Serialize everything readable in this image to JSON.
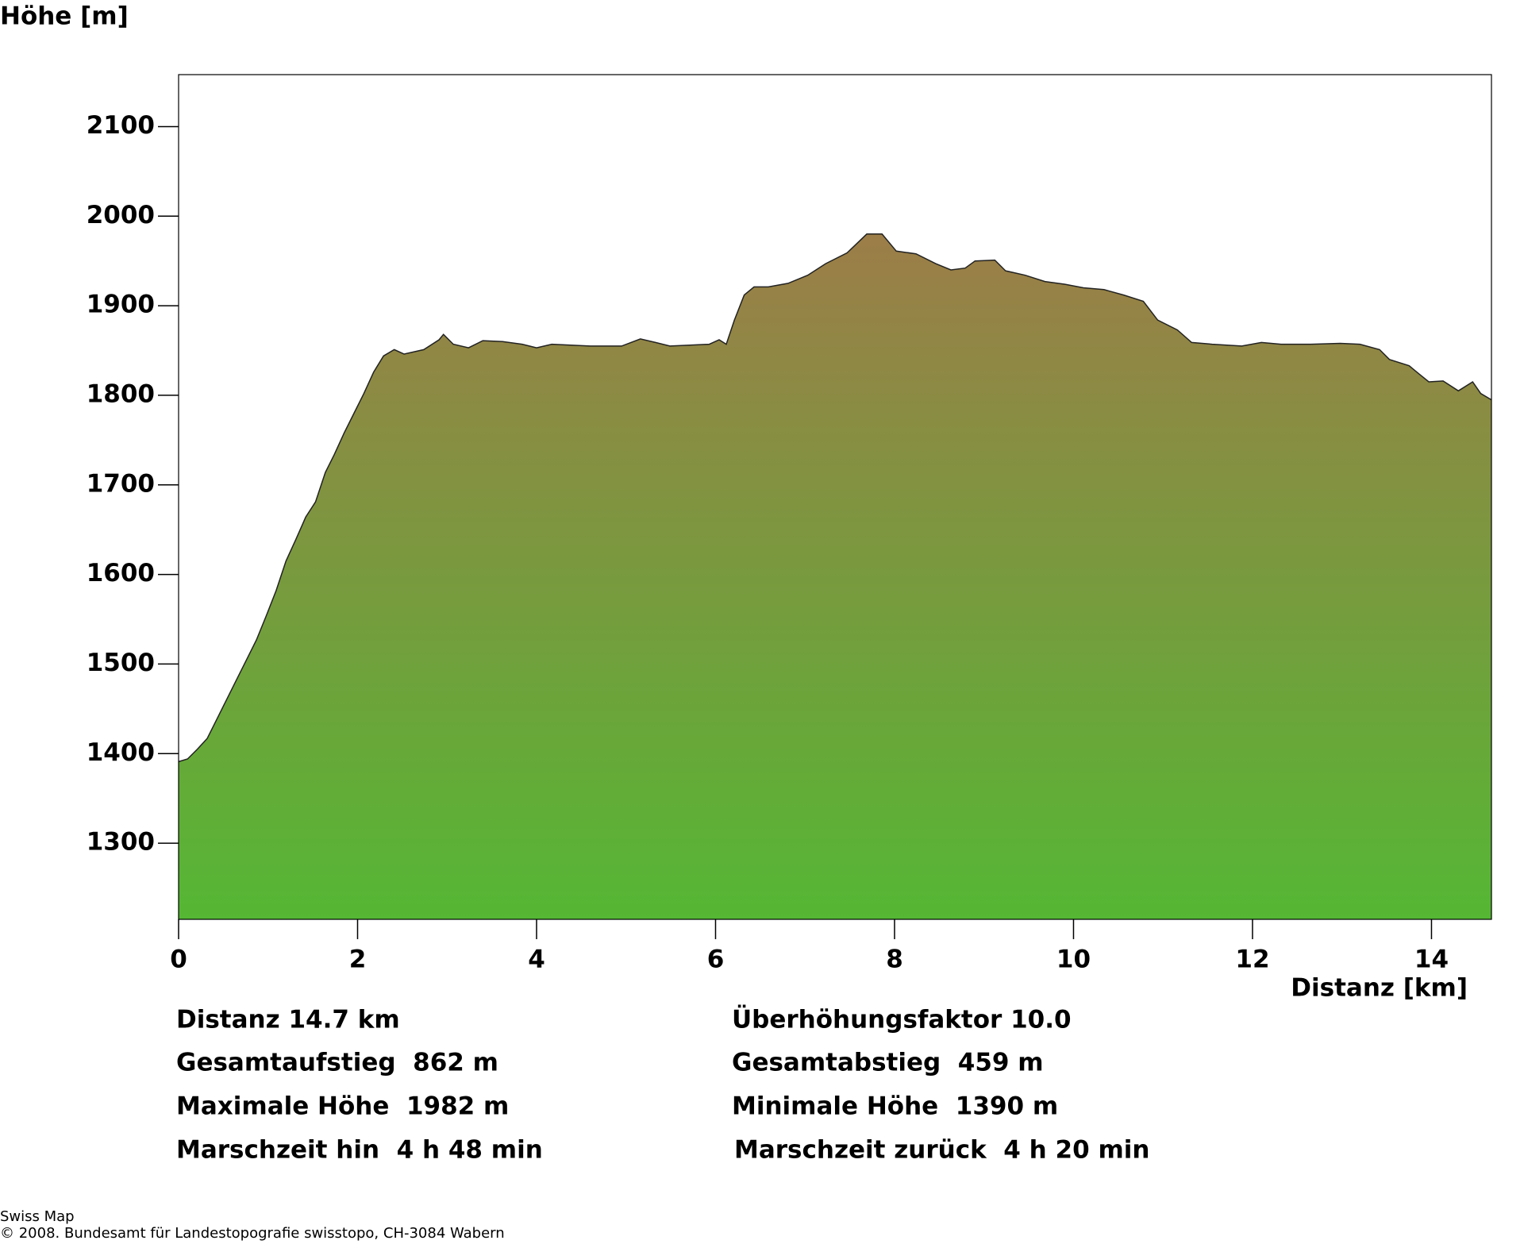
{
  "chart_data": {
    "type": "area",
    "y_label": "Höhe [m]",
    "x_label": "Distanz [km]",
    "x": [
      0,
      0.1,
      0.21,
      0.32,
      0.43,
      0.54,
      0.65,
      0.76,
      0.87,
      0.98,
      1.09,
      1.2,
      1.31,
      1.42,
      1.53,
      1.64,
      1.74,
      1.85,
      1.96,
      2.07,
      2.18,
      2.29,
      2.41,
      2.52,
      2.74,
      2.91,
      2.96,
      3.07,
      3.24,
      3.4,
      3.62,
      3.84,
      4.0,
      4.17,
      4.6,
      4.95,
      5.16,
      5.33,
      5.49,
      5.71,
      5.93,
      6.04,
      6.12,
      6.21,
      6.32,
      6.43,
      6.59,
      6.81,
      7.03,
      7.23,
      7.47,
      7.69,
      7.86,
      8.02,
      8.24,
      8.46,
      8.63,
      8.79,
      8.9,
      9.12,
      9.24,
      9.46,
      9.68,
      9.9,
      10.11,
      10.34,
      10.56,
      10.78,
      10.94,
      11.16,
      11.32,
      11.55,
      11.88,
      12.1,
      12.32,
      12.65,
      12.98,
      13.2,
      13.42,
      13.53,
      13.75,
      13.86,
      13.97,
      14.13,
      14.3,
      14.46,
      14.55,
      14.67
    ],
    "values": [
      1391,
      1394,
      1405,
      1417,
      1439,
      1461,
      1483,
      1505,
      1527,
      1554,
      1582,
      1615,
      1639,
      1664,
      1681,
      1714,
      1734,
      1758,
      1780,
      1802,
      1826,
      1844,
      1851,
      1846,
      1851,
      1862,
      1868,
      1857,
      1853,
      1861,
      1860,
      1857,
      1853,
      1857,
      1855,
      1855,
      1863,
      1859,
      1855,
      1856,
      1857,
      1862,
      1857,
      1884,
      1912,
      1921,
      1921,
      1925,
      1934,
      1947,
      1959,
      1980,
      1980,
      1961,
      1958,
      1947,
      1940,
      1942,
      1950,
      1951,
      1939,
      1934,
      1927,
      1924,
      1920,
      1918,
      1912,
      1905,
      1884,
      1873,
      1859,
      1857,
      1855,
      1859,
      1857,
      1857,
      1858,
      1857,
      1851,
      1840,
      1833,
      1824,
      1815,
      1816,
      1805,
      1815,
      1802,
      1795
    ],
    "colors": [
      "#9c7d48",
      "#55b734"
    ],
    "xlim": [
      0,
      14.67
    ],
    "xticks": [
      0,
      2,
      4,
      6,
      8,
      10,
      12,
      14
    ],
    "ylim": [
      1215,
      2158
    ],
    "yticks": [
      1300,
      1400,
      1500,
      1600,
      1700,
      1800,
      1900,
      2000,
      2100
    ]
  },
  "stats": {
    "left": [
      "Distanz 14.7 km",
      "Gesamtaufstieg  862 m",
      "Maximale Höhe  1982 m",
      "Marschzeit hin  4 h 48 min"
    ],
    "right": [
      "Überhöhungsfaktor 10.0",
      "Gesamtabstieg  459 m",
      "Minimale Höhe  1390 m",
      "Marschzeit zurück  4 h 20 min"
    ]
  },
  "footer": [
    "Swiss Map",
    "© 2008. Bundesamt für Landestopografie swisstopo, CH-3084 Wabern"
  ]
}
